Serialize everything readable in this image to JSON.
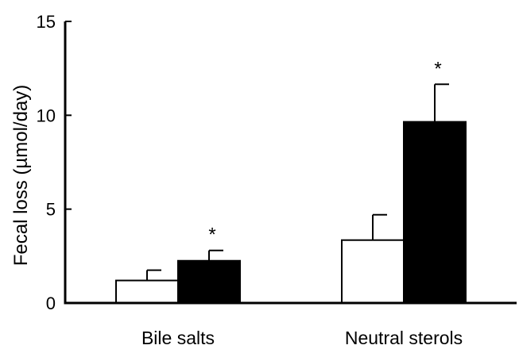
{
  "chart_data": {
    "type": "bar",
    "title": "",
    "xlabel": "",
    "ylabel": "Fecal loss (µmol/day)",
    "ylim": [
      0,
      15
    ],
    "yticks": [
      "0",
      "5",
      "10",
      "15"
    ],
    "categories": [
      "Bile salts",
      "Neutral sterols"
    ],
    "series": [
      {
        "fill": "#ffffff",
        "values": [
          1.2,
          3.35
        ],
        "errors": [
          0.55,
          1.35
        ]
      },
      {
        "fill": "#000000",
        "values": [
          2.25,
          9.65
        ],
        "errors": [
          0.55,
          2.0
        ]
      }
    ],
    "annotations": [
      {
        "category": 0,
        "series": 1,
        "text": "*"
      },
      {
        "category": 1,
        "series": 1,
        "text": "*"
      }
    ],
    "grid": false,
    "legend": "none",
    "colors": {
      "stroke": "#000000"
    }
  }
}
